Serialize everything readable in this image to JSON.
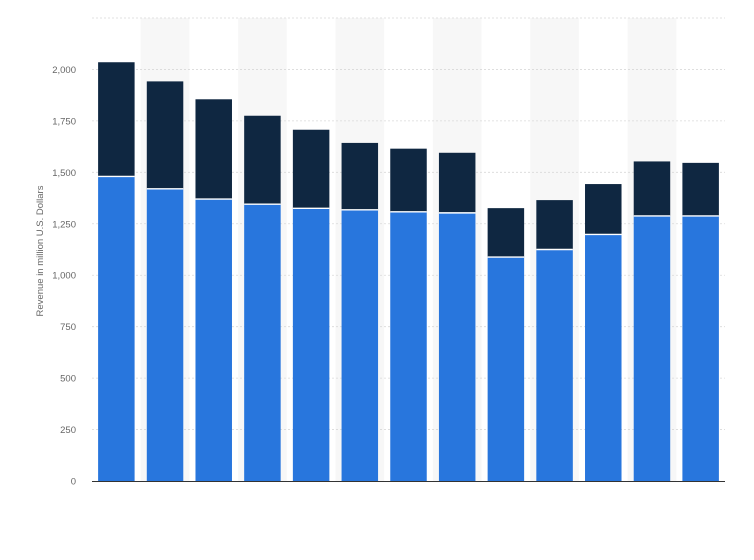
{
  "chart_data": {
    "type": "bar",
    "stacked": true,
    "title": "",
    "xlabel": "",
    "ylabel": "Revenue in million U.S. Dollars",
    "ylim": [
      0,
      2250
    ],
    "yticks": [
      0,
      250,
      500,
      750,
      1000,
      1250,
      1500,
      1750,
      2000
    ],
    "ytick_labels": [
      "0",
      "250",
      "500",
      "750",
      "1,000",
      "1,250",
      "1,500",
      "1,750",
      "2,000"
    ],
    "grid": true,
    "legend": "none",
    "categories": [
      "",
      "",
      "",
      "",
      "",
      "",
      "",
      "",
      "",
      "",
      "",
      "",
      ""
    ],
    "series": [
      {
        "values": [
          1480,
          1420,
          1370,
          1345,
          1325,
          1318,
          1308,
          1303,
          1088,
          1125,
          1198,
          1288,
          1288
        ],
        "color": "#2876dd"
      },
      {
        "values": [
          555,
          522,
          485,
          430,
          382,
          325,
          307,
          292,
          238,
          240,
          245,
          265,
          258
        ],
        "color": "#0f2741"
      }
    ],
    "colors": {
      "grid": "#d9d9d9",
      "band": "#f7f7f7",
      "axis": "#333333",
      "text": "#666666"
    }
  }
}
